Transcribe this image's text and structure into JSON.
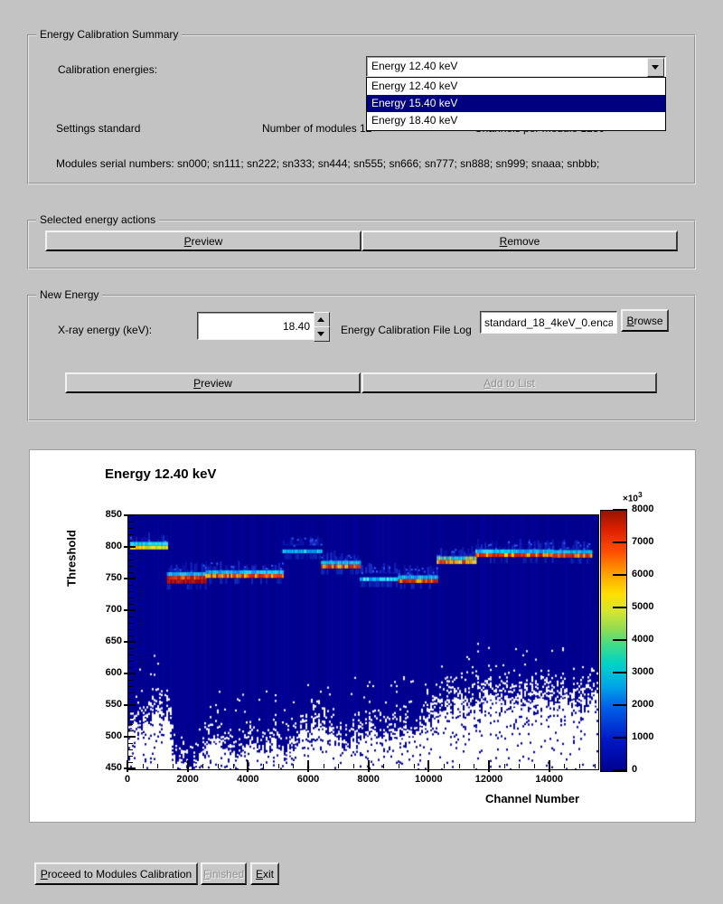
{
  "summary_group": {
    "title": "Energy Calibration Summary",
    "calibration_energies_label": "Calibration energies:",
    "combobox_value": "Energy 12.40 keV",
    "dropdown_items": [
      {
        "label": "Energy 12.40 keV",
        "selected": false
      },
      {
        "label": "Energy 15.40 keV",
        "selected": true
      },
      {
        "label": "Energy 18.40 keV",
        "selected": false
      }
    ],
    "settings_label": "Settings standard",
    "modules_label": "Number of modules 12",
    "channels_label": "Channels per module 1280",
    "serials_label": "Modules serial numbers: sn000; sn111; sn222; sn333; sn444; sn555; sn666; sn777; sn888; sn999; snaaa; snbbb;"
  },
  "actions_group": {
    "title": "Selected energy actions",
    "preview_label": "Preview",
    "remove_label": "Remove"
  },
  "new_energy_group": {
    "title": "New Energy",
    "xray_label": "X-ray energy (keV):",
    "energy_value": "18.40",
    "file_label": "Energy Calibration File Log",
    "file_value": "standard_18_4keV_0.encal",
    "browse_label": "Browse",
    "preview_label": "Preview",
    "add_label": "Add to List"
  },
  "footer": {
    "proceed_label": "Proceed to Modules Calibration",
    "finished_label": "Finished",
    "exit_label": "Exit"
  },
  "colors": {
    "window_bg": "#c3c3c3",
    "highlight": "#000080",
    "plot_bg": "#ffffff",
    "hist_base_blue": "#000090"
  },
  "chart_data": {
    "type": "heatmap",
    "title": "Energy 12.40 keV",
    "xlabel": "Channel Number",
    "ylabel": "Threshold",
    "x_range": [
      0,
      15600
    ],
    "y_range": [
      448,
      852
    ],
    "x_ticks": [
      0,
      2000,
      4000,
      6000,
      8000,
      10000,
      12000,
      14000
    ],
    "x_minor_step": 500,
    "y_ticks": [
      450,
      500,
      550,
      600,
      650,
      700,
      750,
      800,
      850
    ],
    "y_minor_step": 10,
    "grid": false,
    "colorbar": {
      "min": 0,
      "max": 8000,
      "ticks": [
        0,
        1000,
        2000,
        3000,
        4000,
        5000,
        6000,
        7000,
        8000
      ],
      "multiplier_prefix": "×10",
      "multiplier_exponent": "3",
      "gradient": [
        [
          0.0,
          "#00008f"
        ],
        [
          0.12,
          "#0018c8"
        ],
        [
          0.25,
          "#0064e8"
        ],
        [
          0.33,
          "#00a8e8"
        ],
        [
          0.41,
          "#00d2c8"
        ],
        [
          0.48,
          "#3cdc8c"
        ],
        [
          0.55,
          "#96dc50"
        ],
        [
          0.61,
          "#d2e632"
        ],
        [
          0.68,
          "#ffe000"
        ],
        [
          0.76,
          "#ffa000"
        ],
        [
          0.84,
          "#ff5000"
        ],
        [
          0.93,
          "#dc2000"
        ],
        [
          1.0,
          "#961400"
        ]
      ]
    },
    "modules": [
      {
        "channels": [
          0,
          1280
        ],
        "peak_threshold": 801,
        "band_style": "yellow"
      },
      {
        "channels": [
          1280,
          2560
        ],
        "peak_threshold": 753,
        "band_style": "red-dark"
      },
      {
        "channels": [
          2560,
          3840
        ],
        "peak_threshold": 756,
        "band_style": "red"
      },
      {
        "channels": [
          3840,
          5120
        ],
        "peak_threshold": 756,
        "band_style": "red"
      },
      {
        "channels": [
          5120,
          6400
        ],
        "peak_threshold": 795,
        "band_style": "cyan"
      },
      {
        "channels": [
          6400,
          7680
        ],
        "peak_threshold": 771,
        "band_style": "red"
      },
      {
        "channels": [
          7680,
          8960
        ],
        "peak_threshold": 751,
        "band_style": "cyan"
      },
      {
        "channels": [
          8960,
          10240
        ],
        "peak_threshold": 748,
        "band_style": "red"
      },
      {
        "channels": [
          10240,
          11520
        ],
        "peak_threshold": 778,
        "band_style": "orange"
      },
      {
        "channels": [
          11520,
          12800
        ],
        "peak_threshold": 789,
        "band_style": "red"
      },
      {
        "channels": [
          12800,
          14080
        ],
        "peak_threshold": 789,
        "band_style": "red"
      },
      {
        "channels": [
          14080,
          15360
        ],
        "peak_threshold": 788,
        "band_style": "red"
      }
    ],
    "noise_floor_profile": [
      [
        0,
        508
      ],
      [
        500,
        520
      ],
      [
        1000,
        535
      ],
      [
        1300,
        540
      ],
      [
        1500,
        462
      ],
      [
        2000,
        452
      ],
      [
        2400,
        470
      ],
      [
        2800,
        498
      ],
      [
        3200,
        478
      ],
      [
        3600,
        468
      ],
      [
        4000,
        488
      ],
      [
        4400,
        478
      ],
      [
        4800,
        492
      ],
      [
        5200,
        470
      ],
      [
        5600,
        500
      ],
      [
        6000,
        512
      ],
      [
        6400,
        520
      ],
      [
        6800,
        500
      ],
      [
        7200,
        488
      ],
      [
        7600,
        505
      ],
      [
        8000,
        512
      ],
      [
        8400,
        495
      ],
      [
        8800,
        508
      ],
      [
        9200,
        500
      ],
      [
        9600,
        512
      ],
      [
        10000,
        518
      ],
      [
        10400,
        540
      ],
      [
        10800,
        545
      ],
      [
        11200,
        538
      ],
      [
        11600,
        548
      ],
      [
        12000,
        552
      ],
      [
        12400,
        545
      ],
      [
        12800,
        552
      ],
      [
        13200,
        548
      ],
      [
        13600,
        555
      ],
      [
        14000,
        550
      ],
      [
        14400,
        552
      ],
      [
        14800,
        548
      ],
      [
        15200,
        552
      ],
      [
        15600,
        555
      ]
    ]
  }
}
